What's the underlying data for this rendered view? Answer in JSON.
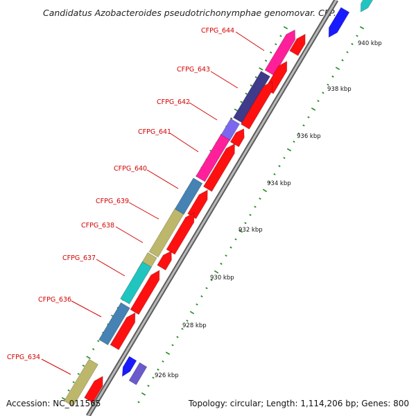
{
  "title": "Candidatus Azobacteroides pseudotrichonymphae genomovar. CFP...",
  "footer": {
    "accession": "Accession: NC_011565",
    "summary": "Topology: circular; Length: 1,114,206 bp; Genes: 800"
  },
  "colors": {
    "backbone": "#9a9a9a",
    "gene_label": "#d40000",
    "scale_dots": "#1f8a1f",
    "forward_strand": "#ff1010"
  },
  "scale_labels": [
    "940 kbp",
    "938 kbp",
    "936 kbp",
    "934 kbp",
    "932 kbp",
    "930 kbp",
    "928 kbp",
    "926 kbp"
  ],
  "gene_labels": [
    "CFPG_644",
    "CFPG_643",
    "CFPG_642",
    "CFPG_641",
    "CFPG_640",
    "CFPG_639",
    "CFPG_638",
    "CFPG_637",
    "CFPG_636",
    "CFPG_634"
  ]
}
